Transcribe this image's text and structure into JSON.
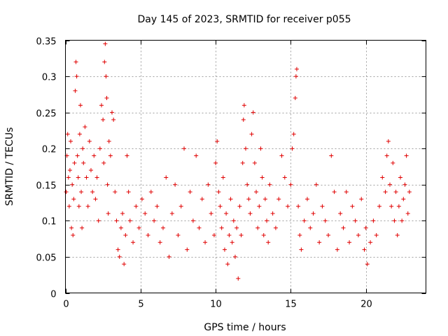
{
  "chart_data": {
    "type": "scatter",
    "title": "Day 145 of 2023, SRMTID for receiver p055",
    "xlabel": "GPS time / hours",
    "ylabel": "SRMTID / TECUs",
    "xlim": [
      0,
      24
    ],
    "ylim": [
      0,
      0.35
    ],
    "grid": true,
    "x_ticks": [
      0,
      5,
      10,
      15,
      20
    ],
    "x_tick_labels": [
      "0",
      "5",
      "10",
      "15",
      "20"
    ],
    "y_ticks": [
      0,
      0.05,
      0.1,
      0.15,
      0.2,
      0.25,
      0.3,
      0.35
    ],
    "y_tick_labels": [
      "0",
      "0.05",
      "0.1",
      "0.15",
      "0.2",
      "0.25",
      "0.3",
      "0.35"
    ],
    "marker": "+",
    "color": "#e00000",
    "series": [
      {
        "name": "SRMTID",
        "points": [
          [
            0.05,
            0.14
          ],
          [
            0.1,
            0.19
          ],
          [
            0.15,
            0.22
          ],
          [
            0.2,
            0.16
          ],
          [
            0.25,
            0.12
          ],
          [
            0.3,
            0.17
          ],
          [
            0.35,
            0.21
          ],
          [
            0.4,
            0.09
          ],
          [
            0.45,
            0.15
          ],
          [
            0.5,
            0.08
          ],
          [
            0.55,
            0.13
          ],
          [
            0.6,
            0.18
          ],
          [
            0.65,
            0.28
          ],
          [
            0.7,
            0.32
          ],
          [
            0.75,
            0.3
          ],
          [
            0.8,
            0.19
          ],
          [
            0.85,
            0.16
          ],
          [
            0.9,
            0.12
          ],
          [
            0.95,
            0.22
          ],
          [
            1.0,
            0.26
          ],
          [
            1.05,
            0.14
          ],
          [
            1.1,
            0.09
          ],
          [
            1.15,
            0.2
          ],
          [
            1.2,
            0.18
          ],
          [
            1.3,
            0.23
          ],
          [
            1.4,
            0.16
          ],
          [
            1.5,
            0.12
          ],
          [
            1.6,
            0.21
          ],
          [
            1.7,
            0.17
          ],
          [
            1.8,
            0.14
          ],
          [
            1.9,
            0.19
          ],
          [
            2.0,
            0.13
          ],
          [
            2.1,
            0.16
          ],
          [
            2.2,
            0.1
          ],
          [
            2.3,
            0.2
          ],
          [
            2.4,
            0.26
          ],
          [
            2.5,
            0.24
          ],
          [
            2.55,
            0.18
          ],
          [
            2.6,
            0.32
          ],
          [
            2.65,
            0.345
          ],
          [
            2.7,
            0.3
          ],
          [
            2.75,
            0.27
          ],
          [
            2.8,
            0.15
          ],
          [
            2.85,
            0.11
          ],
          [
            2.9,
            0.21
          ],
          [
            3.0,
            0.19
          ],
          [
            3.1,
            0.25
          ],
          [
            3.2,
            0.24
          ],
          [
            3.3,
            0.14
          ],
          [
            3.4,
            0.1
          ],
          [
            3.5,
            0.06
          ],
          [
            3.6,
            0.05
          ],
          [
            3.7,
            0.09
          ],
          [
            3.8,
            0.11
          ],
          [
            3.9,
            0.04
          ],
          [
            4.0,
            0.08
          ],
          [
            4.1,
            0.19
          ],
          [
            4.2,
            0.14
          ],
          [
            4.3,
            0.1
          ],
          [
            4.5,
            0.07
          ],
          [
            4.7,
            0.12
          ],
          [
            4.9,
            0.09
          ],
          [
            5.1,
            0.13
          ],
          [
            5.3,
            0.11
          ],
          [
            5.5,
            0.08
          ],
          [
            5.7,
            0.14
          ],
          [
            5.9,
            0.1
          ],
          [
            6.1,
            0.12
          ],
          [
            6.3,
            0.07
          ],
          [
            6.5,
            0.09
          ],
          [
            6.7,
            0.16
          ],
          [
            6.9,
            0.05
          ],
          [
            7.1,
            0.11
          ],
          [
            7.3,
            0.15
          ],
          [
            7.5,
            0.08
          ],
          [
            7.7,
            0.12
          ],
          [
            7.9,
            0.2
          ],
          [
            8.1,
            0.06
          ],
          [
            8.3,
            0.14
          ],
          [
            8.5,
            0.1
          ],
          [
            8.7,
            0.19
          ],
          [
            8.9,
            0.09
          ],
          [
            9.1,
            0.13
          ],
          [
            9.3,
            0.07
          ],
          [
            9.5,
            0.15
          ],
          [
            9.7,
            0.11
          ],
          [
            9.9,
            0.08
          ],
          [
            10.0,
            0.18
          ],
          [
            10.1,
            0.21
          ],
          [
            10.2,
            0.14
          ],
          [
            10.3,
            0.12
          ],
          [
            10.4,
            0.09
          ],
          [
            10.5,
            0.16
          ],
          [
            10.6,
            0.06
          ],
          [
            10.7,
            0.11
          ],
          [
            10.8,
            0.04
          ],
          [
            10.9,
            0.08
          ],
          [
            11.0,
            0.13
          ],
          [
            11.1,
            0.07
          ],
          [
            11.2,
            0.1
          ],
          [
            11.3,
            0.05
          ],
          [
            11.4,
            0.09
          ],
          [
            11.5,
            0.02
          ],
          [
            11.6,
            0.12
          ],
          [
            11.7,
            0.08
          ],
          [
            11.8,
            0.18
          ],
          [
            11.85,
            0.24
          ],
          [
            11.9,
            0.26
          ],
          [
            12.0,
            0.2
          ],
          [
            12.1,
            0.15
          ],
          [
            12.2,
            0.13
          ],
          [
            12.3,
            0.11
          ],
          [
            12.4,
            0.22
          ],
          [
            12.5,
            0.25
          ],
          [
            12.6,
            0.18
          ],
          [
            12.7,
            0.14
          ],
          [
            12.8,
            0.09
          ],
          [
            12.9,
            0.12
          ],
          [
            13.0,
            0.2
          ],
          [
            13.1,
            0.16
          ],
          [
            13.2,
            0.08
          ],
          [
            13.3,
            0.13
          ],
          [
            13.4,
            0.1
          ],
          [
            13.5,
            0.07
          ],
          [
            13.6,
            0.15
          ],
          [
            13.8,
            0.11
          ],
          [
            14.0,
            0.09
          ],
          [
            14.2,
            0.13
          ],
          [
            14.4,
            0.19
          ],
          [
            14.6,
            0.16
          ],
          [
            14.8,
            0.12
          ],
          [
            15.0,
            0.15
          ],
          [
            15.1,
            0.2
          ],
          [
            15.2,
            0.22
          ],
          [
            15.3,
            0.27
          ],
          [
            15.35,
            0.3
          ],
          [
            15.4,
            0.31
          ],
          [
            15.5,
            0.12
          ],
          [
            15.6,
            0.08
          ],
          [
            15.7,
            0.06
          ],
          [
            15.9,
            0.1
          ],
          [
            16.1,
            0.13
          ],
          [
            16.3,
            0.09
          ],
          [
            16.5,
            0.11
          ],
          [
            16.7,
            0.15
          ],
          [
            16.9,
            0.07
          ],
          [
            17.1,
            0.12
          ],
          [
            17.3,
            0.1
          ],
          [
            17.5,
            0.08
          ],
          [
            17.7,
            0.19
          ],
          [
            17.9,
            0.14
          ],
          [
            18.1,
            0.06
          ],
          [
            18.3,
            0.11
          ],
          [
            18.5,
            0.09
          ],
          [
            18.7,
            0.14
          ],
          [
            18.9,
            0.07
          ],
          [
            19.1,
            0.12
          ],
          [
            19.3,
            0.1
          ],
          [
            19.5,
            0.08
          ],
          [
            19.7,
            0.13
          ],
          [
            19.9,
            0.06
          ],
          [
            20.0,
            0.09
          ],
          [
            20.1,
            0.04
          ],
          [
            20.3,
            0.07
          ],
          [
            20.5,
            0.1
          ],
          [
            20.7,
            0.08
          ],
          [
            20.9,
            0.12
          ],
          [
            21.1,
            0.16
          ],
          [
            21.3,
            0.14
          ],
          [
            21.4,
            0.19
          ],
          [
            21.5,
            0.21
          ],
          [
            21.6,
            0.15
          ],
          [
            21.7,
            0.12
          ],
          [
            21.8,
            0.18
          ],
          [
            21.9,
            0.1
          ],
          [
            22.0,
            0.14
          ],
          [
            22.1,
            0.08
          ],
          [
            22.2,
            0.12
          ],
          [
            22.3,
            0.16
          ],
          [
            22.4,
            0.1
          ],
          [
            22.5,
            0.13
          ],
          [
            22.6,
            0.15
          ],
          [
            22.7,
            0.19
          ],
          [
            22.8,
            0.11
          ],
          [
            22.9,
            0.14
          ]
        ]
      }
    ]
  }
}
